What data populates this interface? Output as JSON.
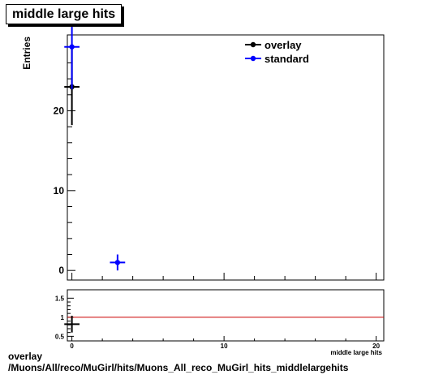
{
  "chart_data": [
    {
      "type": "scatter",
      "title": "middle large hits",
      "xlabel": "middle large hits",
      "ylabel": "Entries",
      "xlim": [
        -0.3,
        20.5
      ],
      "ylim": [
        -1.2,
        29.5
      ],
      "x_ticks": [
        0,
        10,
        20
      ],
      "y_ticks": [
        0,
        10,
        20
      ],
      "legend_position": "top-right",
      "grid": false,
      "series": [
        {
          "name": "overlay",
          "color": "#000000",
          "points": [
            {
              "x": 0,
              "y": 23,
              "yerr": 4.8,
              "xerr": 0.5
            }
          ]
        },
        {
          "name": "standard",
          "color": "#0000ff",
          "points": [
            {
              "x": 0,
              "y": 28,
              "yerr": 5.3,
              "xerr": 0.5
            },
            {
              "x": 3,
              "y": 1,
              "yerr": 1,
              "xerr": 0.5
            }
          ]
        }
      ]
    },
    {
      "type": "scatter",
      "title": "",
      "xlim": [
        -0.3,
        20.5
      ],
      "ylim": [
        0.38,
        1.72
      ],
      "x_ticks": [
        0,
        10,
        20
      ],
      "y_ticks": [
        0.5,
        1,
        1.5
      ],
      "y_tick_labels": [
        "0.5",
        "1",
        "1.5"
      ],
      "reference_line": {
        "y": 1,
        "color": "#cc0000"
      },
      "series": [
        {
          "name": "",
          "color": "#000000",
          "points": [
            {
              "x": 0,
              "y": 0.82,
              "yerr": 0.22,
              "xerr": 0.5
            }
          ]
        }
      ]
    }
  ],
  "caption": {
    "line1": "overlay",
    "line2": "/Muons/All/reco/MuGirl/hits/Muons_All_reco_MuGirl_hits_middlelargehits"
  }
}
